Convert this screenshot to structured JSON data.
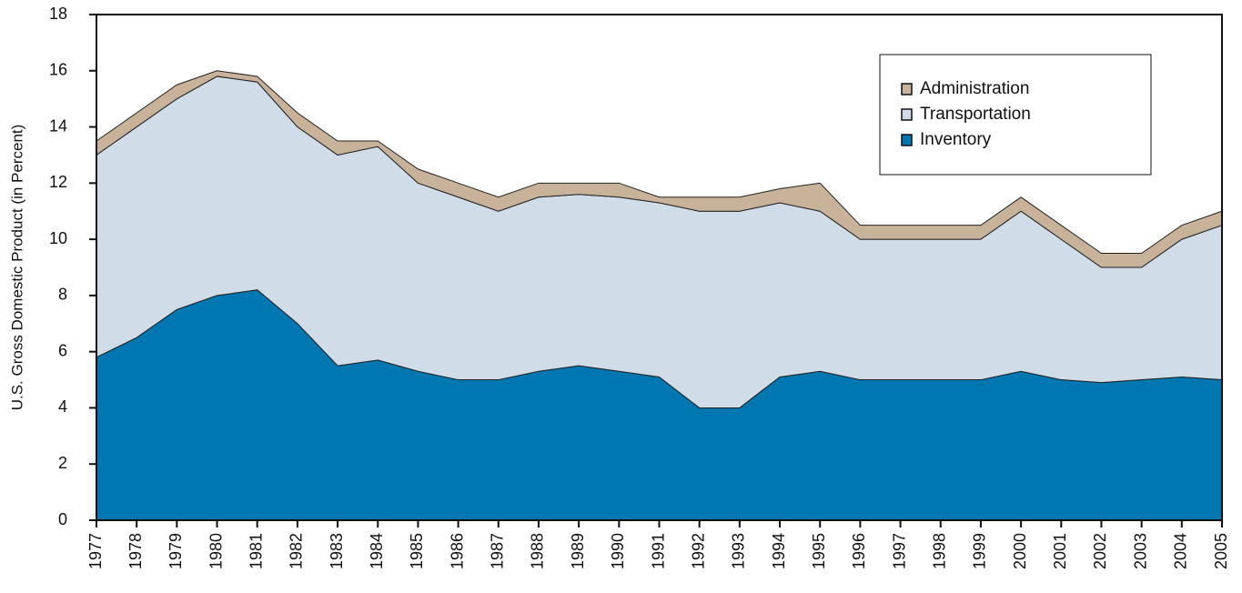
{
  "chart_data": {
    "type": "stacked_area",
    "y_label": "U.S. Gross Domestic Product (in Percent)",
    "categories": [
      "1977",
      "1978",
      "1979",
      "1980",
      "1981",
      "1982",
      "1983",
      "1984",
      "1985",
      "1986",
      "1987",
      "1988",
      "1989",
      "1990",
      "1991",
      "1992",
      "1993",
      "1994",
      "1995",
      "1996",
      "1997",
      "1998",
      "1999",
      "2000",
      "2001",
      "2002",
      "2003",
      "2004",
      "2005"
    ],
    "series": [
      {
        "name": "Inventory",
        "color": "#0077b0",
        "values": [
          5.8,
          6.5,
          7.5,
          8.0,
          8.2,
          7.0,
          5.5,
          5.7,
          5.3,
          5.0,
          5.0,
          5.3,
          5.5,
          5.3,
          5.1,
          4.0,
          4.0,
          5.1,
          5.3,
          5.0,
          5.0,
          5.0,
          5.0,
          5.3,
          5.0,
          4.9,
          5.0,
          5.1,
          5.0
        ]
      },
      {
        "name": "Transportation",
        "color": "#d0dde8",
        "values": [
          7.2,
          7.5,
          7.5,
          7.8,
          7.4,
          7.0,
          7.5,
          7.6,
          6.7,
          6.5,
          6.0,
          6.2,
          6.1,
          6.2,
          6.2,
          7.0,
          7.0,
          6.2,
          5.7,
          5.0,
          5.0,
          5.0,
          5.0,
          5.7,
          5.0,
          4.1,
          4.0,
          4.9,
          5.5
        ]
      },
      {
        "name": "Administration",
        "color": "#c8b39a",
        "values": [
          0.5,
          0.5,
          0.5,
          0.2,
          0.2,
          0.5,
          0.5,
          0.2,
          0.5,
          0.5,
          0.5,
          0.5,
          0.4,
          0.5,
          0.2,
          0.5,
          0.5,
          0.5,
          1.0,
          0.5,
          0.5,
          0.5,
          0.5,
          0.5,
          0.5,
          0.5,
          0.5,
          0.5,
          0.5
        ]
      }
    ],
    "ylim": [
      0,
      18
    ],
    "yticks": [
      0,
      2,
      4,
      6,
      8,
      10,
      12,
      14,
      16,
      18
    ],
    "grid": false,
    "legend": "upper right"
  }
}
